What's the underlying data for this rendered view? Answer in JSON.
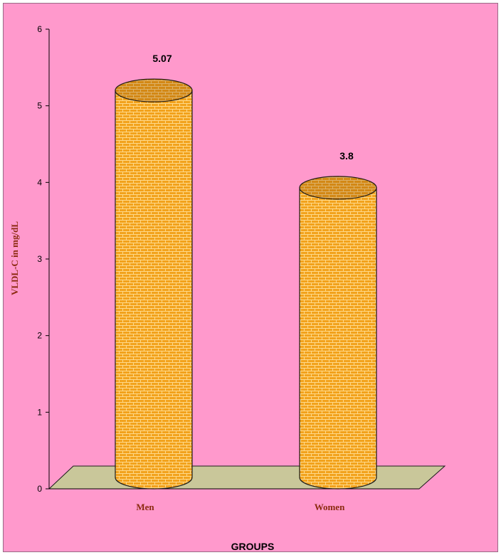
{
  "chart_data": {
    "type": "bar",
    "style": "3d-cylinder",
    "categories": [
      "Men",
      "Women"
    ],
    "values": [
      5.07,
      3.8
    ],
    "data_labels": [
      "5.07",
      "3.8"
    ],
    "title": "",
    "xlabel": "GROUPS",
    "ylabel": "VLDL-C in mg/dL",
    "ylim": [
      0,
      6
    ],
    "yticks": [
      "0",
      "1",
      "2",
      "3",
      "4",
      "5",
      "6"
    ],
    "grid": false,
    "legend": "none"
  },
  "colors": {
    "background": "#ff99cc",
    "bar_fill": "#f2a21c",
    "bar_pattern": "#ffd98a",
    "bar_outline": "#1a1a1a",
    "floor": "#c9c79a",
    "axis_label": "#8b2a0f",
    "category_label": "#8b2a0f"
  }
}
